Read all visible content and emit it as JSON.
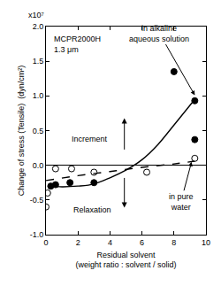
{
  "chart_data": {
    "type": "scatter",
    "x_label": [
      "Residual solvent",
      "(weight ratio : solvent / solid)"
    ],
    "y_label": "Change of stress (Tensile)",
    "y_unit": "(dyn/cm²)",
    "y_multiplier": "x10⁷",
    "sample": [
      "MCPR2000H",
      "1.3 μm"
    ],
    "alkaline_label": [
      "in alkaline",
      "aqueous solution"
    ],
    "water_label": [
      "in pure",
      "water"
    ],
    "increment_label": "Increment",
    "relaxation_label": "Relaxation",
    "xlim": [
      0,
      10
    ],
    "xticks": [
      0,
      2,
      4,
      6,
      8,
      10
    ],
    "ylim": [
      -1.0,
      2.0
    ],
    "yticks": [
      {
        "value": -1.0,
        "label": "-1.0"
      },
      {
        "value": -0.5,
        "label": "-0.5"
      },
      {
        "value": 0,
        "label": "0.0"
      },
      {
        "value": 0.5,
        "label": "0.5"
      },
      {
        "value": 1.0,
        "label": "1.0"
      },
      {
        "value": 1.5,
        "label": "1.5"
      },
      {
        "value": 2.0,
        "label": "2.0"
      }
    ],
    "grid": false,
    "series": [
      {
        "type": "scatter",
        "marker": "filled",
        "color": "#000000",
        "x": [
          0.3,
          0.6,
          1.5,
          3.0,
          8.0,
          9.3,
          9.3
        ],
        "values": [
          -0.3,
          -0.28,
          -0.25,
          -0.25,
          1.35,
          0.93,
          0.37
        ]
      },
      {
        "type": "scatter",
        "marker": "open",
        "color": "#000000",
        "x": [
          0.0,
          0.1,
          0.6,
          1.6,
          3.0,
          6.3,
          9.3
        ],
        "values": [
          -0.6,
          -0.4,
          -0.05,
          -0.05,
          -0.1,
          -0.1,
          0.1
        ]
      },
      {
        "type": "line",
        "line_style": "solid",
        "color": "#000000",
        "x": [
          0.3,
          1.0,
          2.0,
          3.0,
          4.0,
          5.0,
          6.0,
          7.0,
          8.0,
          9.3
        ],
        "values": [
          -0.3,
          -0.31,
          -0.3,
          -0.27,
          -0.18,
          -0.07,
          0.08,
          0.3,
          0.58,
          0.95
        ]
      },
      {
        "type": "line",
        "line_style": "dashed",
        "color": "#000000",
        "x": [
          0.0,
          2.0,
          4.0,
          6.0,
          8.0,
          9.3
        ],
        "values": [
          -0.22,
          -0.15,
          -0.09,
          -0.03,
          0.02,
          0.06
        ]
      }
    ]
  }
}
